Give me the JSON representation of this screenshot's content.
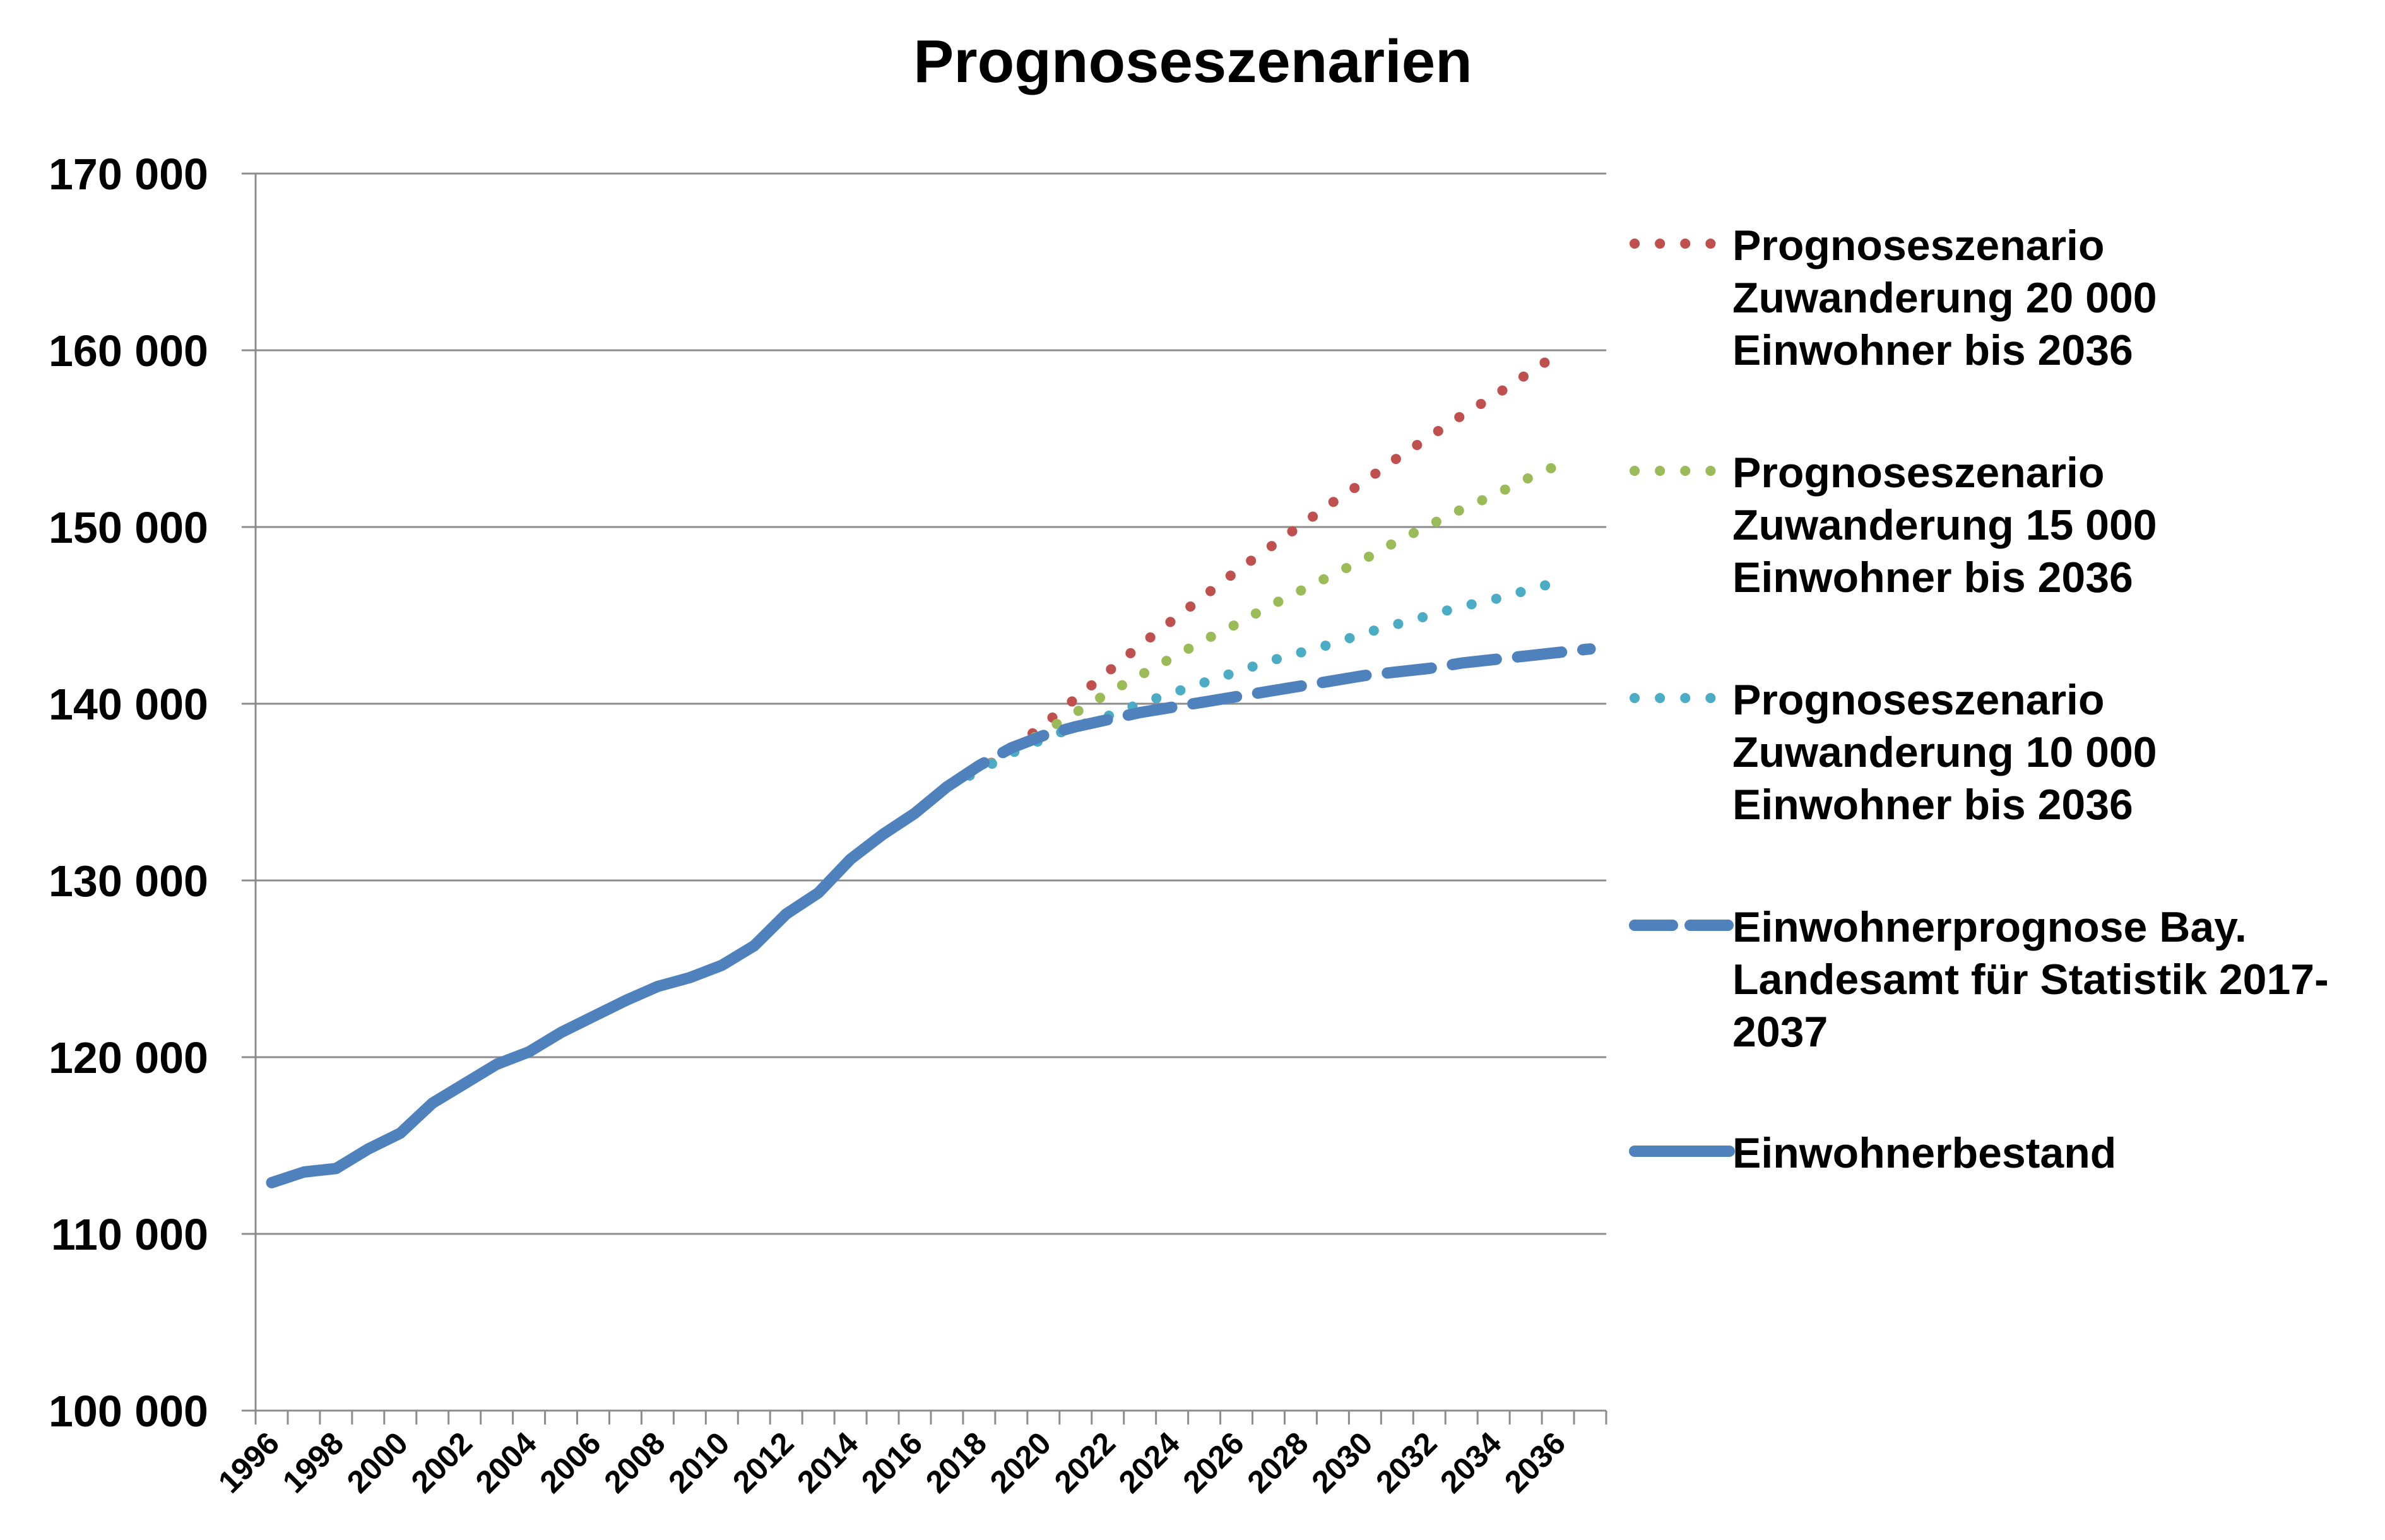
{
  "chart_data": {
    "type": "line",
    "title": "Prognoseszenarien",
    "xlabel": "",
    "ylabel": "",
    "xlim": [
      1996,
      2037
    ],
    "ylim": [
      100000,
      170000
    ],
    "y_ticks": [
      100000,
      110000,
      120000,
      130000,
      140000,
      150000,
      160000,
      170000
    ],
    "y_tick_labels": [
      "100 000",
      "110 000",
      "120 000",
      "130 000",
      "140 000",
      "150 000",
      "160 000",
      "170 000"
    ],
    "x_tick_labels": [
      "1996",
      "1998",
      "2000",
      "2002",
      "2004",
      "2006",
      "2008",
      "2010",
      "2012",
      "2014",
      "2016",
      "2018",
      "2020",
      "2022",
      "2024",
      "2026",
      "2028",
      "2030",
      "2032",
      "2034",
      "2036"
    ],
    "grid": true,
    "legend_position": "right",
    "series": [
      {
        "name": "Prognoseszenario Zuwanderung 20 000 Einwohner bis 2036",
        "legend_lines": [
          "Prognoseszenario",
          "Zuwanderung 20 000",
          "Einwohner bis 2036"
        ],
        "style": "dotted",
        "color": "#c0504d",
        "x": [
          2017,
          2018,
          2019,
          2020,
          2021,
          2022,
          2023,
          2024,
          2025,
          2026,
          2027,
          2028,
          2029,
          2030,
          2031,
          2032,
          2033,
          2034,
          2035,
          2036
        ],
        "y": [
          135300,
          136200,
          137400,
          138800,
          140300,
          141800,
          143300,
          144700,
          146100,
          147500,
          148800,
          150100,
          151400,
          152600,
          153900,
          155100,
          156300,
          157400,
          158600,
          159800
        ]
      },
      {
        "name": "Prognoseszenario Zuwanderung 15 000 Einwohner bis 2036",
        "legend_lines": [
          "Prognoseszenario",
          "Zuwanderung 15 000",
          "Einwohner bis 2036"
        ],
        "style": "dotted",
        "color": "#9bbb59",
        "x": [
          2017,
          2018,
          2019,
          2020,
          2021,
          2022,
          2023,
          2024,
          2025,
          2026,
          2027,
          2028,
          2029,
          2030,
          2031,
          2032,
          2033,
          2034,
          2035,
          2036
        ],
        "y": [
          135300,
          136200,
          137300,
          138400,
          139500,
          140600,
          141600,
          142600,
          143600,
          144500,
          145500,
          146400,
          147300,
          148200,
          149200,
          150100,
          151000,
          151800,
          152700,
          153500
        ]
      },
      {
        "name": "Prognoseszenario Zuwanderung 10 000 Einwohner bis 2036",
        "legend_lines": [
          "Prognoseszenario",
          "Zuwanderung 10 000",
          "Einwohner bis 2036"
        ],
        "style": "dotted",
        "color": "#4bacc6",
        "x": [
          2017,
          2018,
          2019,
          2020,
          2021,
          2022,
          2023,
          2024,
          2025,
          2026,
          2027,
          2028,
          2029,
          2030,
          2031,
          2032,
          2033,
          2034,
          2035,
          2036
        ],
        "y": [
          135300,
          136200,
          137200,
          138000,
          138700,
          139300,
          140000,
          140600,
          141200,
          141800,
          142400,
          142900,
          143400,
          144000,
          144500,
          145000,
          145500,
          145900,
          146400,
          146900
        ]
      },
      {
        "name": "Einwohnerprognose Bay. Landesamt für Statistik 2017-2037",
        "legend_lines": [
          "Einwohnerprognose Bay.",
          "Landesamt für Statistik 2017-",
          "2037"
        ],
        "style": "dashed",
        "color": "#4f81bd",
        "x": [
          2017,
          2018,
          2019,
          2020,
          2021,
          2022,
          2023,
          2024,
          2025,
          2026,
          2027,
          2028,
          2029,
          2030,
          2031,
          2032,
          2033,
          2034,
          2035,
          2036,
          2037
        ],
        "y": [
          135300,
          136500,
          137500,
          138200,
          138700,
          139100,
          139500,
          139800,
          140100,
          140400,
          140700,
          141000,
          141300,
          141600,
          141800,
          142000,
          142300,
          142500,
          142700,
          142900,
          143100
        ]
      },
      {
        "name": "Einwohnerbestand",
        "legend_lines": [
          "Einwohnerbestand"
        ],
        "style": "solid",
        "color": "#4f81bd",
        "x": [
          1996,
          1997,
          1998,
          1999,
          2000,
          2001,
          2002,
          2003,
          2004,
          2005,
          2006,
          2007,
          2008,
          2009,
          2010,
          2011,
          2012,
          2013,
          2014,
          2015,
          2016,
          2017
        ],
        "y": [
          112900,
          113500,
          113700,
          114800,
          115700,
          117400,
          118500,
          119600,
          120300,
          121400,
          122300,
          123200,
          124000,
          124500,
          125200,
          126300,
          128100,
          129300,
          131200,
          132600,
          133800,
          135300
        ]
      }
    ]
  }
}
